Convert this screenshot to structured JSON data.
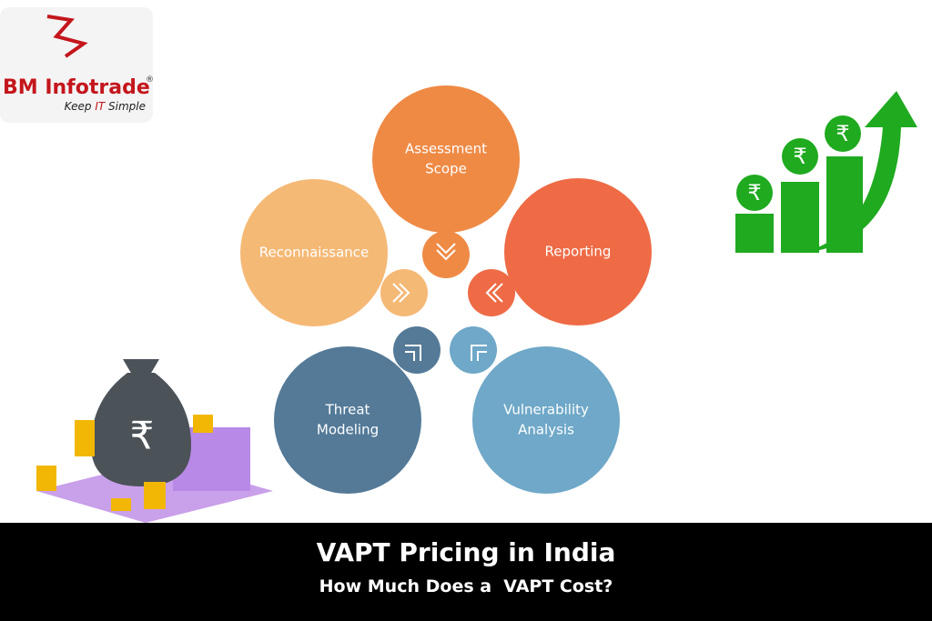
{
  "logo": {
    "name": "BM Infotrade",
    "registered": "®",
    "tagline": [
      "Keep",
      "IT",
      "Simple"
    ]
  },
  "diagram": {
    "nodes": [
      {
        "label_lines": [
          "Assessment",
          "Scope"
        ]
      },
      {
        "label_lines": [
          "Reporting"
        ]
      },
      {
        "label_lines": [
          "Vulnerability",
          "Analysis"
        ]
      },
      {
        "label_lines": [
          "Threat",
          "Modeling"
        ]
      },
      {
        "label_lines": [
          "Reconnaissance"
        ]
      }
    ]
  },
  "rupee_symbol": "₹",
  "footer": {
    "title": "VAPT Pricing in India",
    "subtitle": "How Much Does a  VAPT Cost?"
  }
}
